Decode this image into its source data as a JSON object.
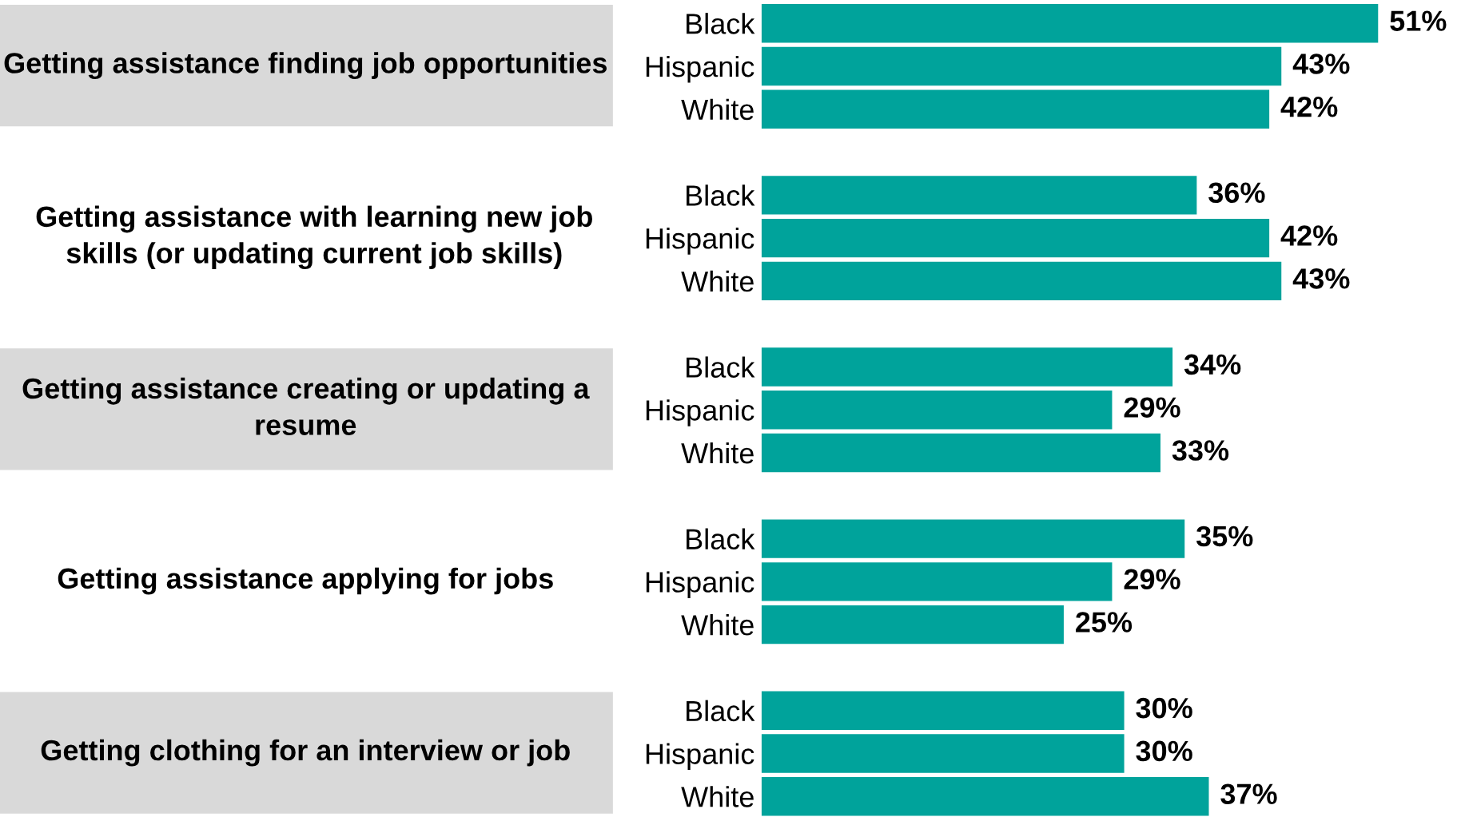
{
  "chart_data": {
    "type": "bar",
    "orientation": "horizontal",
    "categories": [
      "Black",
      "Hispanic",
      "White",
      "Black",
      "Hispanic",
      "White",
      "Black",
      "Hispanic",
      "White",
      "Black",
      "Hispanic",
      "White",
      "Black",
      "Hispanic",
      "White"
    ],
    "values": [
      51,
      43,
      42,
      36,
      42,
      43,
      34,
      29,
      33,
      35,
      29,
      25,
      30,
      30,
      37
    ],
    "value_labels": [
      "51%",
      "43%",
      "42%",
      "36%",
      "42%",
      "43%",
      "34%",
      "29%",
      "33%",
      "35%",
      "29%",
      "25%",
      "30%",
      "30%",
      "37%"
    ],
    "color": "#00a39b",
    "annotations": [
      "Getting assistance finding job opportunities",
      "Getting assistance with learning new job skills (or updating current job skills)",
      "Getting assistance creating or updating a resume",
      "Getting assistance applying for jobs",
      "Getting clothing for an interview or job"
    ],
    "data_labels": true
  }
}
